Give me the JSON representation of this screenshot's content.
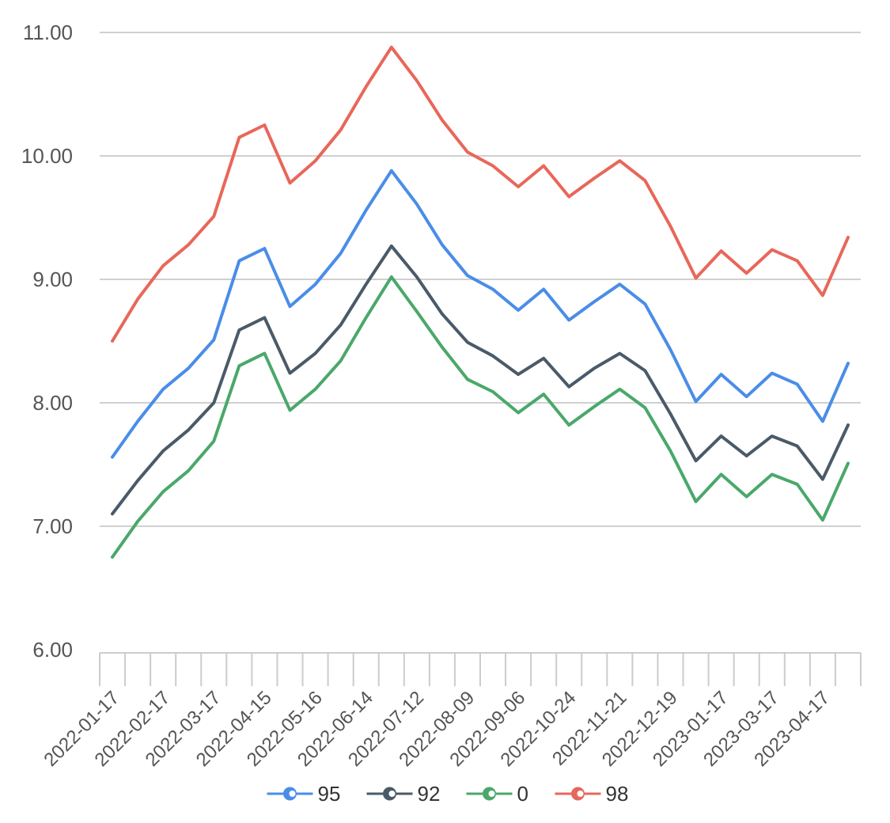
{
  "chart_data": {
    "type": "line",
    "title": "",
    "xlabel": "",
    "ylabel": "",
    "ylim": [
      6,
      11
    ],
    "y_ticks": [
      "6.00",
      "7.00",
      "8.00",
      "9.00",
      "10.00",
      "11.00"
    ],
    "x": [
      "2022-01-17",
      "",
      "2022-02-17",
      "",
      "2022-03-17",
      "",
      "2022-04-15",
      "",
      "2022-05-16",
      "",
      "2022-06-14",
      "",
      "2022-07-12",
      "",
      "2022-08-09",
      "",
      "2022-09-06",
      "",
      "2022-10-24",
      "",
      "2022-11-21",
      "",
      "2022-12-19",
      "",
      "2023-01-17",
      "",
      "2023-03-17",
      "",
      "2023-04-17",
      ""
    ],
    "grid": true,
    "legend_position": "bottom",
    "series": [
      {
        "name": "95",
        "color": "#4a8de8",
        "values": [
          7.56,
          7.85,
          8.11,
          8.28,
          8.51,
          9.15,
          9.25,
          8.78,
          8.96,
          9.21,
          9.56,
          9.88,
          9.61,
          9.28,
          9.03,
          8.92,
          8.75,
          8.92,
          8.67,
          8.82,
          8.96,
          8.8,
          8.43,
          8.01,
          8.23,
          8.05,
          8.24,
          8.15,
          7.85,
          8.32
        ]
      },
      {
        "name": "92",
        "color": "#4a5a68",
        "values": [
          7.1,
          7.37,
          7.61,
          7.78,
          8.0,
          8.59,
          8.69,
          8.24,
          8.4,
          8.63,
          8.96,
          9.27,
          9.02,
          8.72,
          8.49,
          8.38,
          8.23,
          8.36,
          8.13,
          8.28,
          8.4,
          8.26,
          7.91,
          7.53,
          7.73,
          7.57,
          7.73,
          7.65,
          7.38,
          7.82
        ]
      },
      {
        "name": "0",
        "color": "#4aa86a",
        "values": [
          6.75,
          7.04,
          7.28,
          7.45,
          7.69,
          8.3,
          8.4,
          7.94,
          8.11,
          8.34,
          8.69,
          9.02,
          8.74,
          8.45,
          8.19,
          8.09,
          7.92,
          8.07,
          7.82,
          7.97,
          8.11,
          7.96,
          7.61,
          7.2,
          7.42,
          7.24,
          7.42,
          7.34,
          7.05,
          7.51
        ]
      },
      {
        "name": "98",
        "color": "#e8675a",
        "values": [
          8.5,
          8.84,
          9.11,
          9.28,
          9.51,
          10.15,
          10.25,
          9.78,
          9.96,
          10.21,
          10.56,
          10.88,
          10.61,
          10.29,
          10.03,
          9.92,
          9.75,
          9.92,
          9.67,
          9.82,
          9.96,
          9.8,
          9.43,
          9.01,
          9.23,
          9.05,
          9.24,
          9.15,
          8.87,
          9.34
        ]
      }
    ]
  }
}
